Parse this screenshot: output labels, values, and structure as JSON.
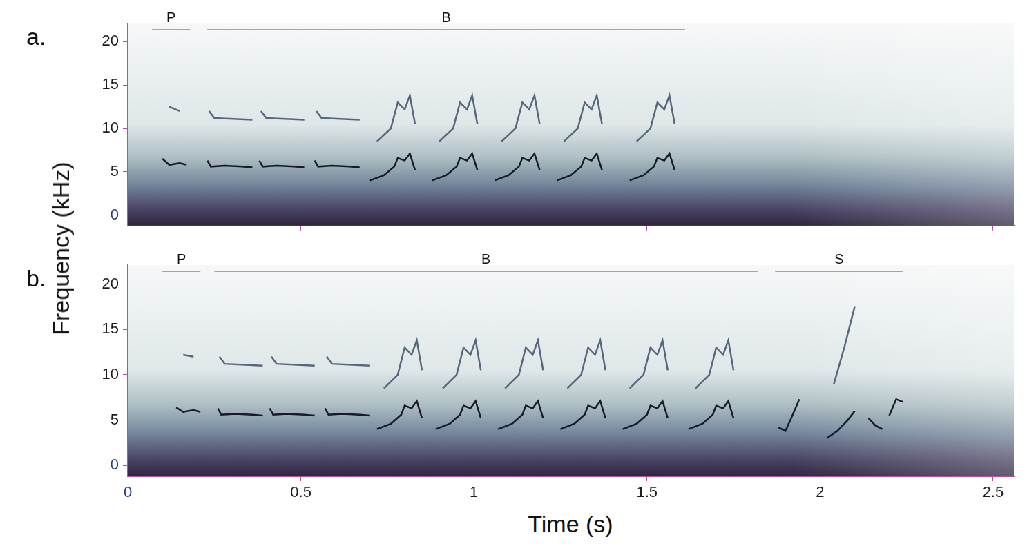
{
  "axis_titles": {
    "x": "Time (s)",
    "y": "Frequency (kHz)"
  },
  "chart_data": [
    {
      "type": "line",
      "panel": "a.",
      "grid": false,
      "tick_labels": "y",
      "xlim": [
        0,
        2.56
      ],
      "xticks": [
        0,
        0.5,
        1,
        1.5,
        2,
        2.5
      ],
      "ylim": [
        -1.2,
        22.1
      ],
      "yticks": [
        0,
        5,
        10,
        15,
        20
      ],
      "annotations": [
        {
          "text": "P",
          "start": 0.07,
          "end": 0.18
        },
        {
          "text": "B",
          "start": 0.23,
          "end": 1.61
        }
      ],
      "series": [
        {
          "color": "#161a2c",
          "x": [
            0.1,
            0.12,
            0.15,
            0.17
          ],
          "values": [
            6.5,
            5.8,
            6.0,
            5.8
          ]
        },
        {
          "color": "#56677d",
          "x": [
            0.12,
            0.15
          ],
          "values": [
            12.5,
            12.0
          ]
        },
        {
          "color": "#161a2c",
          "x": [
            0.23,
            0.24,
            0.28,
            0.33,
            0.36
          ],
          "values": [
            6.3,
            5.6,
            5.7,
            5.6,
            5.5
          ]
        },
        {
          "color": "#56677d",
          "x": [
            0.235,
            0.25,
            0.36
          ],
          "values": [
            12.0,
            11.2,
            11.0
          ]
        },
        {
          "color": "#161a2c",
          "x": [
            0.38,
            0.39,
            0.43,
            0.48,
            0.51
          ],
          "values": [
            6.3,
            5.6,
            5.7,
            5.6,
            5.5
          ]
        },
        {
          "color": "#56677d",
          "x": [
            0.385,
            0.4,
            0.51
          ],
          "values": [
            12.0,
            11.2,
            11.0
          ]
        },
        {
          "color": "#161a2c",
          "x": [
            0.54,
            0.55,
            0.59,
            0.64,
            0.67
          ],
          "values": [
            6.3,
            5.6,
            5.7,
            5.6,
            5.5
          ]
        },
        {
          "color": "#56677d",
          "x": [
            0.545,
            0.56,
            0.67
          ],
          "values": [
            12.0,
            11.2,
            11.0
          ]
        },
        {
          "color": "#161a2c",
          "x": [
            0.7,
            0.74,
            0.77,
            0.78,
            0.8,
            0.815,
            0.83
          ],
          "values": [
            4.0,
            4.6,
            5.6,
            6.6,
            6.3,
            7.1,
            5.2
          ]
        },
        {
          "color": "#56677d",
          "x": [
            0.72,
            0.76,
            0.78,
            0.8,
            0.815,
            0.83
          ],
          "values": [
            8.5,
            10.0,
            13.0,
            12.2,
            13.8,
            10.5
          ]
        },
        {
          "color": "#161a2c",
          "x": [
            0.88,
            0.92,
            0.95,
            0.96,
            0.98,
            0.995,
            1.01
          ],
          "values": [
            4.0,
            4.6,
            5.6,
            6.6,
            6.3,
            7.1,
            5.2
          ]
        },
        {
          "color": "#56677d",
          "x": [
            0.9,
            0.94,
            0.96,
            0.98,
            0.995,
            1.01
          ],
          "values": [
            8.5,
            10.0,
            13.0,
            12.2,
            13.8,
            10.5
          ]
        },
        {
          "color": "#161a2c",
          "x": [
            1.06,
            1.1,
            1.13,
            1.14,
            1.16,
            1.175,
            1.19
          ],
          "values": [
            4.0,
            4.6,
            5.6,
            6.6,
            6.3,
            7.1,
            5.2
          ]
        },
        {
          "color": "#56677d",
          "x": [
            1.08,
            1.12,
            1.14,
            1.16,
            1.175,
            1.19
          ],
          "values": [
            8.5,
            10.0,
            13.0,
            12.2,
            13.8,
            10.5
          ]
        },
        {
          "color": "#161a2c",
          "x": [
            1.24,
            1.28,
            1.31,
            1.32,
            1.34,
            1.355,
            1.37
          ],
          "values": [
            4.0,
            4.6,
            5.6,
            6.6,
            6.3,
            7.1,
            5.2
          ]
        },
        {
          "color": "#56677d",
          "x": [
            1.26,
            1.3,
            1.32,
            1.34,
            1.355,
            1.37
          ],
          "values": [
            8.5,
            10.0,
            13.0,
            12.2,
            13.8,
            10.5
          ]
        },
        {
          "color": "#161a2c",
          "x": [
            1.45,
            1.49,
            1.52,
            1.53,
            1.55,
            1.565,
            1.58
          ],
          "values": [
            4.0,
            4.6,
            5.6,
            6.6,
            6.3,
            7.1,
            5.2
          ]
        },
        {
          "color": "#56677d",
          "x": [
            1.47,
            1.51,
            1.53,
            1.55,
            1.565,
            1.58
          ],
          "values": [
            8.5,
            10.0,
            13.0,
            12.2,
            13.8,
            10.5
          ]
        }
      ]
    },
    {
      "type": "line",
      "panel": "b.",
      "grid": false,
      "tick_labels": true,
      "xlim": [
        0,
        2.56
      ],
      "xticks": [
        0,
        0.5,
        1,
        1.5,
        2,
        2.5
      ],
      "ylim": [
        -1.2,
        22.1
      ],
      "yticks": [
        0,
        5,
        10,
        15,
        20
      ],
      "annotations": [
        {
          "text": "P",
          "start": 0.1,
          "end": 0.21
        },
        {
          "text": "B",
          "start": 0.25,
          "end": 1.82
        },
        {
          "text": "S",
          "start": 1.87,
          "end": 2.24
        }
      ],
      "series": [
        {
          "color": "#161a2c",
          "x": [
            0.14,
            0.16,
            0.19,
            0.21
          ],
          "values": [
            6.4,
            5.9,
            6.1,
            5.9
          ]
        },
        {
          "color": "#56677d",
          "x": [
            0.16,
            0.19
          ],
          "values": [
            12.2,
            12.0
          ]
        },
        {
          "color": "#161a2c",
          "x": [
            0.26,
            0.27,
            0.31,
            0.36,
            0.39
          ],
          "values": [
            6.3,
            5.6,
            5.7,
            5.6,
            5.5
          ]
        },
        {
          "color": "#56677d",
          "x": [
            0.265,
            0.28,
            0.39
          ],
          "values": [
            12.0,
            11.2,
            11.0
          ]
        },
        {
          "color": "#161a2c",
          "x": [
            0.41,
            0.42,
            0.46,
            0.51,
            0.54
          ],
          "values": [
            6.3,
            5.6,
            5.7,
            5.6,
            5.5
          ]
        },
        {
          "color": "#56677d",
          "x": [
            0.415,
            0.43,
            0.54
          ],
          "values": [
            12.0,
            11.2,
            11.0
          ]
        },
        {
          "color": "#161a2c",
          "x": [
            0.57,
            0.58,
            0.62,
            0.67,
            0.7
          ],
          "values": [
            6.3,
            5.6,
            5.7,
            5.6,
            5.5
          ]
        },
        {
          "color": "#56677d",
          "x": [
            0.575,
            0.59,
            0.7
          ],
          "values": [
            12.0,
            11.2,
            11.0
          ]
        },
        {
          "color": "#161a2c",
          "x": [
            0.72,
            0.76,
            0.79,
            0.8,
            0.82,
            0.835,
            0.85
          ],
          "values": [
            4.0,
            4.6,
            5.6,
            6.6,
            6.3,
            7.1,
            5.2
          ]
        },
        {
          "color": "#56677d",
          "x": [
            0.74,
            0.78,
            0.8,
            0.82,
            0.835,
            0.85
          ],
          "values": [
            8.5,
            10.0,
            13.0,
            12.2,
            13.8,
            10.5
          ]
        },
        {
          "color": "#161a2c",
          "x": [
            0.89,
            0.93,
            0.96,
            0.97,
            0.99,
            1.005,
            1.02
          ],
          "values": [
            4.0,
            4.6,
            5.6,
            6.6,
            6.3,
            7.1,
            5.2
          ]
        },
        {
          "color": "#56677d",
          "x": [
            0.91,
            0.95,
            0.97,
            0.99,
            1.005,
            1.02
          ],
          "values": [
            8.5,
            10.0,
            13.0,
            12.2,
            13.8,
            10.5
          ]
        },
        {
          "color": "#161a2c",
          "x": [
            1.07,
            1.11,
            1.14,
            1.15,
            1.17,
            1.185,
            1.2
          ],
          "values": [
            4.0,
            4.6,
            5.6,
            6.6,
            6.3,
            7.1,
            5.2
          ]
        },
        {
          "color": "#56677d",
          "x": [
            1.09,
            1.13,
            1.15,
            1.17,
            1.185,
            1.2
          ],
          "values": [
            8.5,
            10.0,
            13.0,
            12.2,
            13.8,
            10.5
          ]
        },
        {
          "color": "#161a2c",
          "x": [
            1.25,
            1.29,
            1.32,
            1.33,
            1.35,
            1.365,
            1.38
          ],
          "values": [
            4.0,
            4.6,
            5.6,
            6.6,
            6.3,
            7.1,
            5.2
          ]
        },
        {
          "color": "#56677d",
          "x": [
            1.27,
            1.31,
            1.33,
            1.35,
            1.365,
            1.38
          ],
          "values": [
            8.5,
            10.0,
            13.0,
            12.2,
            13.8,
            10.5
          ]
        },
        {
          "color": "#161a2c",
          "x": [
            1.43,
            1.47,
            1.5,
            1.51,
            1.53,
            1.545,
            1.56
          ],
          "values": [
            4.0,
            4.6,
            5.6,
            6.6,
            6.3,
            7.1,
            5.2
          ]
        },
        {
          "color": "#56677d",
          "x": [
            1.45,
            1.49,
            1.51,
            1.53,
            1.545,
            1.56
          ],
          "values": [
            8.5,
            10.0,
            13.0,
            12.2,
            13.8,
            10.5
          ]
        },
        {
          "color": "#161a2c",
          "x": [
            1.62,
            1.66,
            1.69,
            1.7,
            1.72,
            1.735,
            1.75
          ],
          "values": [
            4.0,
            4.6,
            5.6,
            6.6,
            6.3,
            7.1,
            5.2
          ]
        },
        {
          "color": "#56677d",
          "x": [
            1.64,
            1.68,
            1.7,
            1.72,
            1.735,
            1.75
          ],
          "values": [
            8.5,
            10.0,
            13.0,
            12.2,
            13.8,
            10.5
          ]
        },
        {
          "color": "#161a2c",
          "x": [
            1.88,
            1.9,
            1.92,
            1.94
          ],
          "values": [
            4.2,
            3.8,
            5.5,
            7.3
          ]
        },
        {
          "color": "#161a2c",
          "x": [
            2.02,
            2.05,
            2.08,
            2.1
          ],
          "values": [
            3.0,
            3.8,
            5.0,
            6.0
          ]
        },
        {
          "color": "#56677d",
          "x": [
            2.04,
            2.07,
            2.1
          ],
          "values": [
            9.0,
            13.0,
            17.5
          ]
        },
        {
          "color": "#161a2c",
          "x": [
            2.14,
            2.16,
            2.18
          ],
          "values": [
            5.2,
            4.4,
            4.0
          ]
        },
        {
          "color": "#161a2c",
          "x": [
            2.2,
            2.22,
            2.24
          ],
          "values": [
            5.5,
            7.3,
            7.0
          ]
        }
      ]
    }
  ]
}
